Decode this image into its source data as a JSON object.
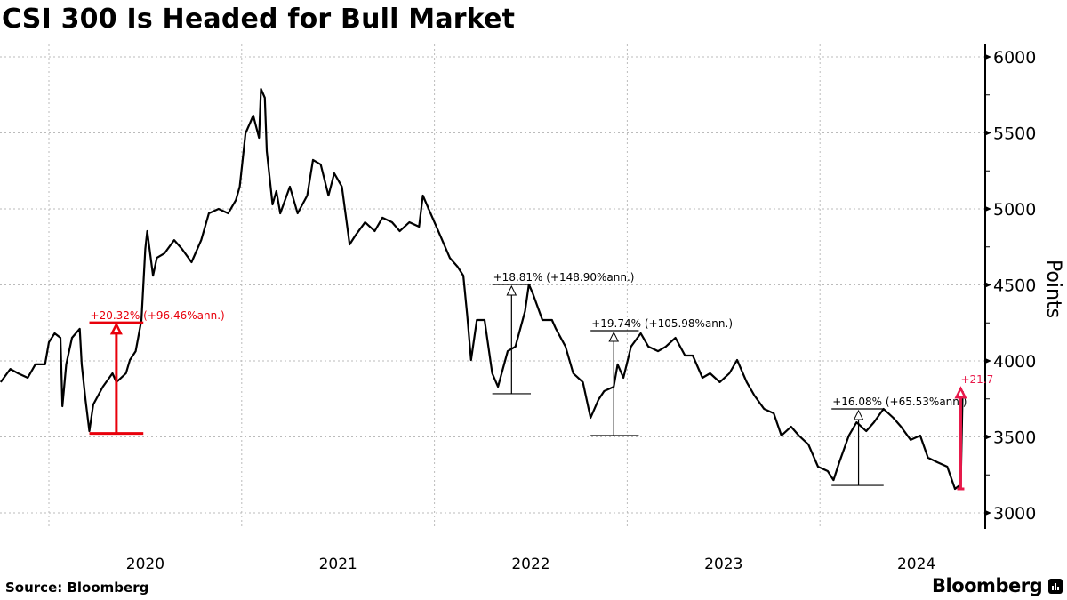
{
  "title": "CSI 300 Is Headed for Bull Market",
  "source": "Source: Bloomberg",
  "brand": "Bloomberg",
  "brand_icon": "bloomberg-terminal-icon",
  "colors": {
    "line": "#000000",
    "highlight_old": "#e8000b",
    "highlight_new": "#e8194a",
    "grid": "#bbbbbb"
  },
  "chart_data": {
    "type": "line",
    "title": "CSI 300 Is Headed for Bull Market",
    "xlabel": "",
    "ylabel": "Points",
    "xlim": [
      2019.75,
      2024.85
    ],
    "ylim": [
      2900,
      6150
    ],
    "yticks": [
      3000,
      3500,
      4000,
      4500,
      5000,
      5500,
      6000
    ],
    "xticks": [
      {
        "label": "2020",
        "pos": 2020.5
      },
      {
        "label": "2021",
        "pos": 2021.5
      },
      {
        "label": "2022",
        "pos": 2022.5
      },
      {
        "label": "2023",
        "pos": 2023.5
      },
      {
        "label": "2024",
        "pos": 2024.5
      }
    ],
    "year_boundaries": [
      2020,
      2021,
      2022,
      2023,
      2024
    ],
    "grid": true,
    "series": [
      {
        "name": "CSI 300",
        "x": [
          2019.75,
          2019.8,
          2019.84,
          2019.89,
          2019.93,
          2019.98,
          2020.0,
          2020.03,
          2020.06,
          2020.07,
          2020.09,
          2020.12,
          2020.16,
          2020.17,
          2020.19,
          2020.21,
          2020.23,
          2020.28,
          2020.33,
          2020.35,
          2020.4,
          2020.42,
          2020.45,
          2020.48,
          2020.5,
          2020.51,
          2020.54,
          2020.56,
          2020.6,
          2020.65,
          2020.69,
          2020.74,
          2020.79,
          2020.83,
          2020.88,
          2020.93,
          2020.97,
          2020.99,
          2021.02,
          2021.04,
          2021.06,
          2021.09,
          2021.1,
          2021.12,
          2021.13,
          2021.16,
          2021.18,
          2021.2,
          2021.25,
          2021.29,
          2021.34,
          2021.37,
          2021.41,
          2021.45,
          2021.48,
          2021.52,
          2021.56,
          2021.59,
          2021.64,
          2021.69,
          2021.73,
          2021.78,
          2021.82,
          2021.87,
          2021.92,
          2021.94,
          2021.99,
          2022.03,
          2022.08,
          2022.12,
          2022.15,
          2022.17,
          2022.19,
          2022.22,
          2022.26,
          2022.3,
          2022.33,
          2022.38,
          2022.42,
          2022.47,
          2022.49,
          2022.51,
          2022.56,
          2022.61,
          2022.63,
          2022.68,
          2022.72,
          2022.77,
          2022.81,
          2022.85,
          2022.88,
          2022.93,
          2022.95,
          2022.98,
          2023.02,
          2023.07,
          2023.11,
          2023.16,
          2023.2,
          2023.25,
          2023.3,
          2023.34,
          2023.39,
          2023.43,
          2023.48,
          2023.53,
          2023.57,
          2023.62,
          2023.66,
          2023.71,
          2023.76,
          2023.8,
          2023.85,
          2023.89,
          2023.94,
          2023.99,
          2024.04,
          2024.07,
          2024.1,
          2024.15,
          2024.19,
          2024.24,
          2024.28,
          2024.33,
          2024.38,
          2024.42,
          2024.47,
          2024.52,
          2024.56,
          2024.61,
          2024.66,
          2024.7,
          2024.73,
          2024.74
        ],
        "values": [
          3860,
          3947,
          3918,
          3889,
          3977,
          3977,
          4123,
          4181,
          4152,
          3702,
          3977,
          4152,
          4211,
          3977,
          3743,
          3538,
          3713,
          3830,
          3918,
          3860,
          3918,
          4006,
          4064,
          4269,
          4737,
          4854,
          4561,
          4678,
          4708,
          4795,
          4737,
          4649,
          4795,
          4971,
          5000,
          4971,
          5058,
          5146,
          5497,
          5556,
          5614,
          5468,
          5789,
          5731,
          5380,
          5029,
          5117,
          4971,
          5146,
          4971,
          5088,
          5322,
          5292,
          5088,
          5234,
          5146,
          4766,
          4825,
          4912,
          4854,
          4942,
          4912,
          4854,
          4912,
          4883,
          5088,
          4942,
          4825,
          4678,
          4620,
          4561,
          4298,
          4006,
          4269,
          4269,
          3918,
          3830,
          4064,
          4094,
          4327,
          4503,
          4444,
          4269,
          4269,
          4211,
          4094,
          3918,
          3860,
          3626,
          3743,
          3801,
          3830,
          3977,
          3889,
          4094,
          4181,
          4094,
          4064,
          4094,
          4152,
          4035,
          4035,
          3889,
          3918,
          3860,
          3918,
          4006,
          3860,
          3772,
          3684,
          3655,
          3509,
          3567,
          3509,
          3450,
          3304,
          3275,
          3216,
          3333,
          3509,
          3596,
          3538,
          3596,
          3684,
          3626,
          3567,
          3480,
          3509,
          3363,
          3333,
          3304,
          3158,
          3187,
          3801
        ]
      }
    ],
    "annotations": [
      {
        "label": "+20.32% (+96.46%ann.)",
        "x_start": 2020.21,
        "x_end": 2020.49,
        "x_arrow": 2020.35,
        "low": 3523,
        "high": 4251,
        "style": "red"
      },
      {
        "label": "+18.81% (+148.90%ann.)",
        "x_start": 2022.3,
        "x_end": 2022.5,
        "x_arrow": 2022.4,
        "low": 3784,
        "high": 4503,
        "style": "black"
      },
      {
        "label": "+19.74% (+105.98%ann.)",
        "x_start": 2022.81,
        "x_end": 2023.06,
        "x_arrow": 2022.93,
        "low": 3509,
        "high": 4199,
        "style": "black"
      },
      {
        "label": "+16.08% (+65.53%ann.)",
        "x_start": 2024.06,
        "x_end": 2024.33,
        "x_arrow": 2024.2,
        "low": 3181,
        "high": 3684,
        "style": "black"
      },
      {
        "label": "+21.7",
        "x_start": 2024.73,
        "x_end": 2024.73,
        "x_arrow": 2024.73,
        "low": 3158,
        "high": 3830,
        "style": "pink"
      }
    ]
  }
}
